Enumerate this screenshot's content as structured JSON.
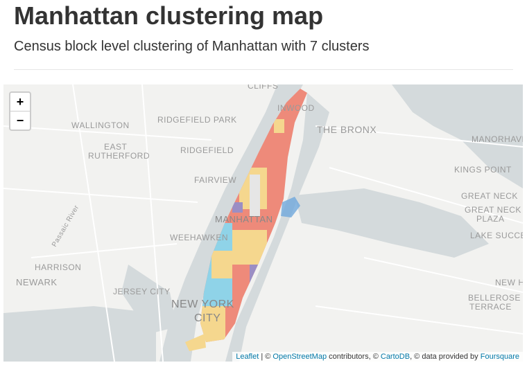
{
  "header": {
    "title": "Manhattan clustering map",
    "subtitle": "Census block level clustering of Manhattan with 7 clusters"
  },
  "map": {
    "zoom_in": "+",
    "zoom_out": "−",
    "labels": [
      "CLIFFS",
      "INWOOD",
      "WALLINGTON",
      "RIDGEFIELD PARK",
      "THE BRONX",
      "EAST",
      "RUTHERFORD",
      "RIDGEFIELD",
      "MANORHAVEN",
      "KINGS POINT",
      "FAIRVIEW",
      "GREAT NECK",
      "GREAT NECK",
      "PLAZA",
      "MANHATTAN",
      "WEEHAWKEN",
      "LAKE SUCCESS",
      "Passaic River",
      "HARRISON",
      "NEWARK",
      "NEW HY",
      "JERSEY CITY",
      "BELLEROSE",
      "TERRACE",
      "NEW YORK",
      "CITY"
    ],
    "attribution": {
      "leaflet": "Leaflet",
      "sep1": " | © ",
      "osm": "OpenStreetMap",
      "sep2": " contributors, © ",
      "carto": "CartoDB",
      "sep3": ", © data provided by ",
      "foursquare": "Foursquare"
    }
  }
}
